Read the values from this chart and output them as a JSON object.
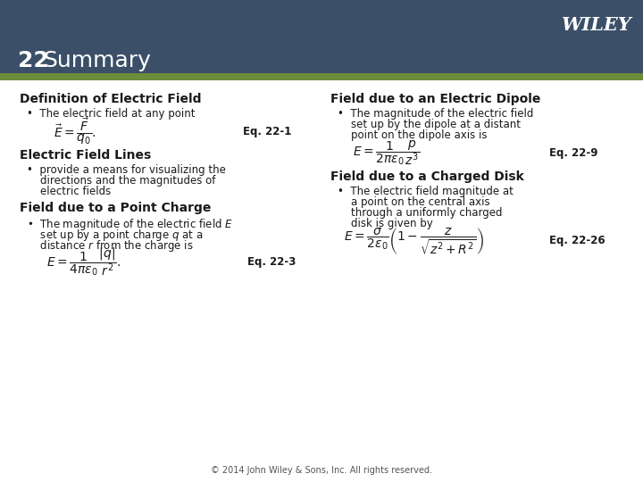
{
  "header_bg_color": "#3b5068",
  "header_green_stripe": "#6b8c3a",
  "body_bg_color": "#ffffff",
  "title_number": "22",
  "title_text": "Summary",
  "wiley_text": "WILEY",
  "wiley_color": "#ffffff",
  "header_text_color": "#ffffff",
  "body_text_color": "#1a1a1a",
  "section_title_color": "#1a1a1a",
  "footer_text": "© 2014 John Wiley & Sons, Inc. All rights reserved.",
  "col1_sections": [
    {
      "heading": "Definition of Electric Field",
      "bullet": "The electric field at any point",
      "equation": "$\\vec{E} = \\dfrac{\\vec{F}}{q_0}.$",
      "eq_label": "Eq. 22-1"
    },
    {
      "heading": "Electric Field Lines",
      "bullet": "provide a means for visualizing the\ndirections and the magnitudes of\nelectric fields",
      "equation": null,
      "eq_label": null
    },
    {
      "heading": "Field due to a Point Charge",
      "bullet": "The magnitude of the electric field $E$\nset up by a point charge $q$ at a\ndistance $r$ from the charge is",
      "equation": "$E = \\dfrac{1}{4\\pi\\varepsilon_0}\\dfrac{|q|}{r^2}.$",
      "eq_label": "Eq. 22-3"
    }
  ],
  "col2_sections": [
    {
      "heading": "Field due to an Electric Dipole",
      "bullet": "The magnitude of the electric field\nset up by the dipole at a distant\npoint on the dipole axis is",
      "equation": "$E = \\dfrac{1}{2\\pi\\varepsilon_0}\\dfrac{p}{z^3}$",
      "eq_label": "Eq. 22-9"
    },
    {
      "heading": "Field due to a Charged Disk",
      "bullet": "The electric field magnitude at\na point on the central axis\nthrough a uniformly charged\ndisk is given by",
      "equation": "$E = \\dfrac{\\sigma}{2\\varepsilon_0}\\left(1 - \\dfrac{z}{\\sqrt{z^2+R^2}}\\right)$",
      "eq_label": "Eq. 22-26"
    }
  ]
}
